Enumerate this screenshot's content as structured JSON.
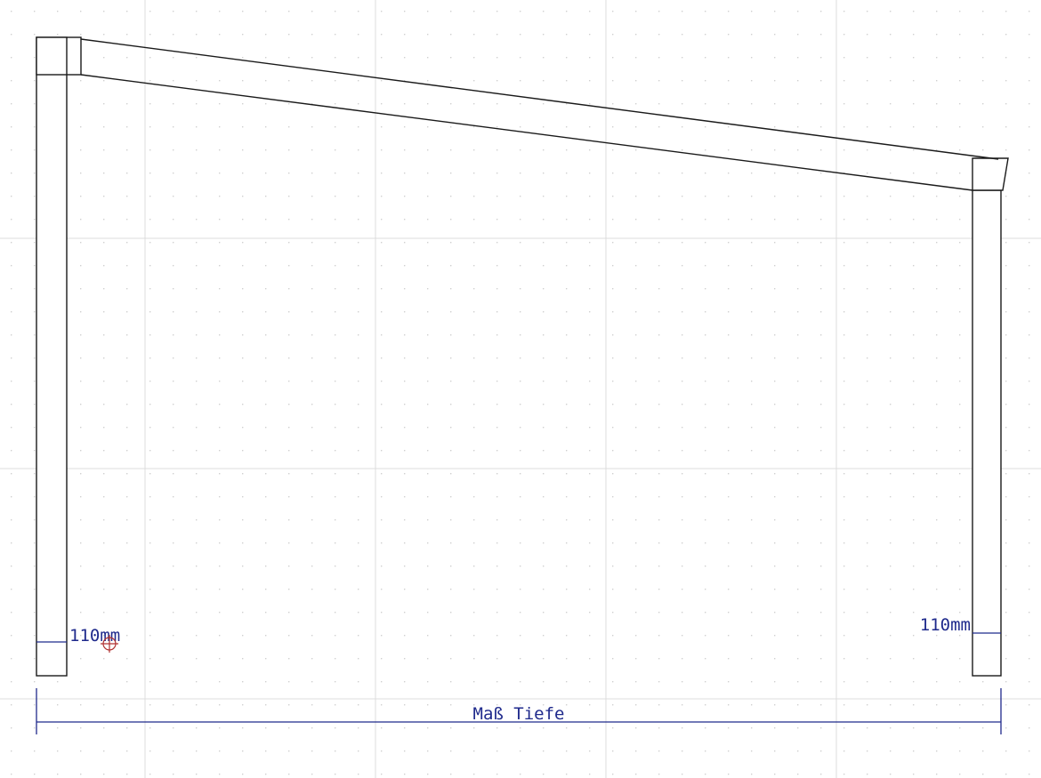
{
  "drawing": {
    "left_post_label": "110mm",
    "right_post_label": "110mm",
    "depth_dimension_label": "Maß Tiefe"
  },
  "colors": {
    "background": "#ffffff",
    "grid_major": "#d9d9d9",
    "grid_dot": "#d4d4d4",
    "outline": "#1a1a1a",
    "dimension": "#1f2a8c",
    "cursor": "#b03030"
  },
  "icons": {
    "cursor": "crosshair-cursor-icon"
  }
}
